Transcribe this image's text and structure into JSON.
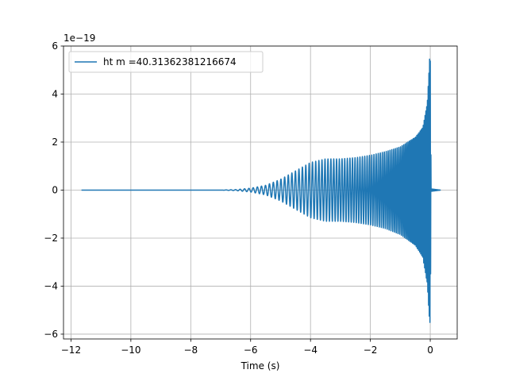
{
  "chart_data": {
    "type": "line",
    "title": "",
    "xlabel": "Time (s)",
    "ylabel": "",
    "y_offset_label": "1e−19",
    "xlim": [
      -12.25,
      0.9
    ],
    "ylim": [
      -6.2,
      6.0
    ],
    "x_ticks": [
      -12,
      -10,
      -8,
      -6,
      -4,
      -2,
      0
    ],
    "x_tick_labels": [
      "−12",
      "−10",
      "−8",
      "−6",
      "−4",
      "−2",
      "0"
    ],
    "y_ticks": [
      -6,
      -4,
      -2,
      0,
      2,
      4,
      6
    ],
    "y_tick_labels": [
      "−6",
      "−4",
      "−2",
      "0",
      "2",
      "4",
      "6"
    ],
    "y_unit_scale": 1e-19,
    "grid": true,
    "legend_position": "upper left",
    "series": [
      {
        "name": "ht m =40.31362381216674",
        "color": "#1f77b4",
        "x_range": [
          -11.65,
          0.35
        ],
        "envelope": {
          "x": [
            -11.65,
            -7.0,
            -6.5,
            -6.0,
            -5.5,
            -5.0,
            -4.5,
            -4.0,
            -3.5,
            -3.0,
            -2.5,
            -2.0,
            -1.5,
            -1.0,
            -0.5,
            -0.25,
            -0.1,
            -0.02,
            0.0,
            0.03,
            0.35
          ],
          "upper": [
            0.0,
            0.0,
            0.02,
            0.08,
            0.2,
            0.45,
            0.8,
            1.15,
            1.3,
            1.3,
            1.35,
            1.45,
            1.6,
            1.8,
            2.2,
            2.6,
            3.6,
            5.5,
            5.5,
            0.05,
            0.0
          ],
          "lower": [
            0.0,
            0.0,
            -0.02,
            -0.08,
            -0.2,
            -0.45,
            -0.8,
            -1.15,
            -1.3,
            -1.3,
            -1.35,
            -1.45,
            -1.6,
            -1.85,
            -2.3,
            -2.8,
            -3.9,
            -5.6,
            -5.6,
            -0.05,
            0.0
          ]
        },
        "oscillation_cycles_per_second": [
          {
            "x": -7.0,
            "f": 6.0
          },
          {
            "x": -4.0,
            "f": 9.0
          },
          {
            "x": -2.0,
            "f": 13.0
          },
          {
            "x": -1.0,
            "f": 18.0
          },
          {
            "x": -0.3,
            "f": 28.0
          },
          {
            "x": 0.0,
            "f": 45.0
          }
        ]
      }
    ]
  }
}
